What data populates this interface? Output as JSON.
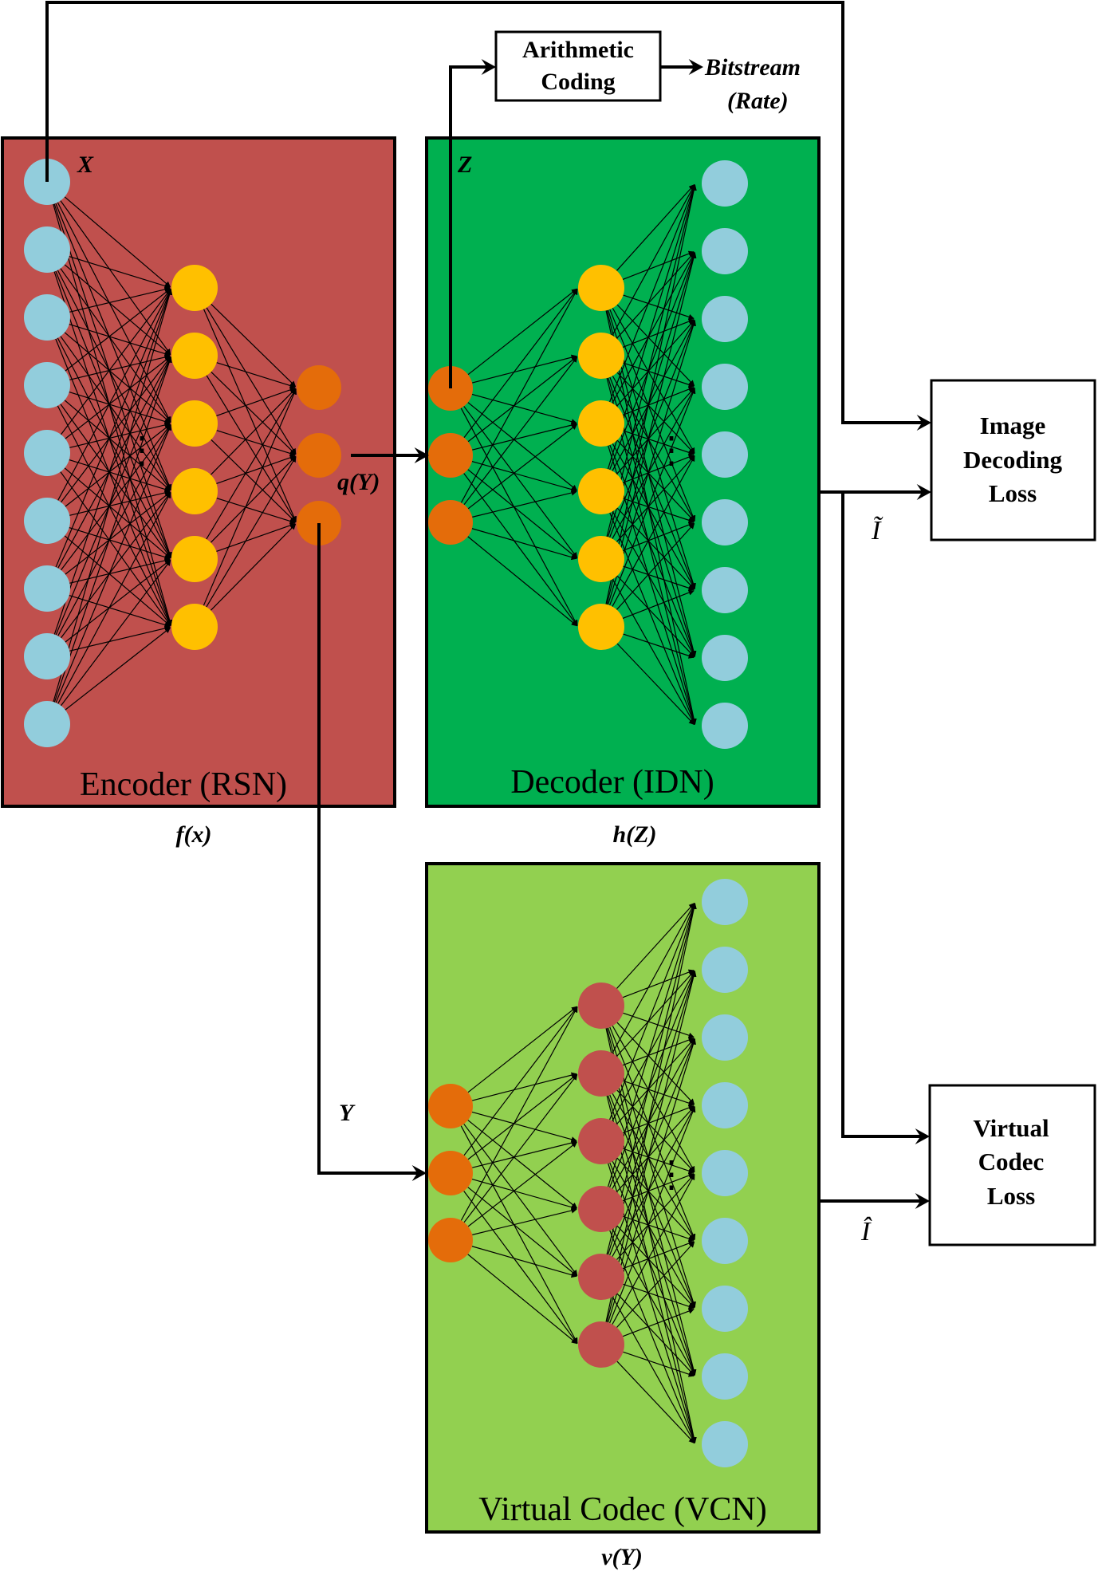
{
  "colors": {
    "encoder_bg": "#c0504d",
    "decoder_bg": "#00b050",
    "vcn_bg": "#92d050",
    "input_node": "#92cddc",
    "hidden_node_yellow": "#ffc000",
    "code_node": "#e46c0a",
    "hidden_node_red": "#c0504d",
    "line": "#000000"
  },
  "blocks": {
    "encoder": {
      "title": "Encoder (RSN)",
      "func": "f(x)"
    },
    "decoder": {
      "title": "Decoder (IDN)",
      "func": "h(Z)"
    },
    "vcn": {
      "title": "Virtual Codec (VCN)",
      "func": "v(Y)"
    }
  },
  "boxes": {
    "arithmetic": {
      "line1": "Arithmetic",
      "line2": "Coding"
    },
    "idl": {
      "line1": "Image",
      "line2": "Decoding",
      "line3": "Loss"
    },
    "vcl": {
      "line1": "Virtual",
      "line2": "Codec",
      "line3": "Loss"
    }
  },
  "labels": {
    "x": "X",
    "z": "Z",
    "qy": "q(Y)",
    "y": "Y",
    "bitstream": "Bitstream",
    "rate": "(Rate)",
    "i_tilde": "Ĩ",
    "i_hat": "Î",
    "dots": "⋮"
  },
  "network": {
    "encoder_layers": [
      9,
      6,
      3
    ],
    "decoder_layers": [
      3,
      6,
      9
    ],
    "vcn_layers": [
      3,
      6,
      9
    ]
  }
}
